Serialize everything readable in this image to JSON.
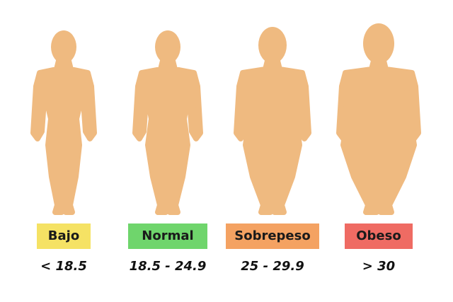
{
  "items": [
    {
      "label": "Bajo",
      "range": "< 18.5"
    },
    {
      "label": "Normal",
      "range": "18.5 - 24.9"
    },
    {
      "label": "Sobrepeso",
      "range": "25 - 29.9"
    },
    {
      "label": "Obeso",
      "range": "> 30"
    }
  ]
}
